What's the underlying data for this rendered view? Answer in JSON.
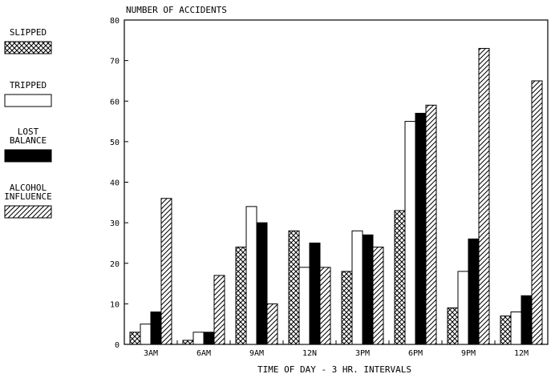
{
  "chart_data": {
    "type": "bar",
    "ylabel": "NUMBER OF ACCIDENTS",
    "xlabel": "TIME OF DAY - 3 HR. INTERVALS",
    "categories": [
      "3AM",
      "6AM",
      "9AM",
      "12N",
      "3PM",
      "6PM",
      "9PM",
      "12M"
    ],
    "ylim": [
      0,
      80
    ],
    "yticks": [
      "0",
      "10",
      "20",
      "30",
      "40",
      "50",
      "60",
      "70",
      "80"
    ],
    "series": [
      {
        "name": "SLIPPED",
        "name_lines": [
          "SLIPPED"
        ],
        "pattern": "crosshatch",
        "values": [
          3,
          1,
          24,
          28,
          18,
          33,
          9,
          7
        ]
      },
      {
        "name": "TRIPPED",
        "name_lines": [
          "TRIPPED"
        ],
        "pattern": "white",
        "values": [
          5,
          3,
          34,
          19,
          28,
          55,
          18,
          8
        ]
      },
      {
        "name": "LOST BALANCE",
        "name_lines": [
          "LOST",
          "BALANCE"
        ],
        "pattern": "solid",
        "values": [
          8,
          3,
          30,
          25,
          27,
          57,
          26,
          12
        ]
      },
      {
        "name": "ALCOHOL INFLUENCE",
        "name_lines": [
          "ALCOHOL",
          "INFLUENCE"
        ],
        "pattern": "diagonal",
        "values": [
          36,
          17,
          10,
          19,
          24,
          59,
          73,
          65
        ]
      }
    ],
    "grid": false,
    "legend_position": "left"
  }
}
